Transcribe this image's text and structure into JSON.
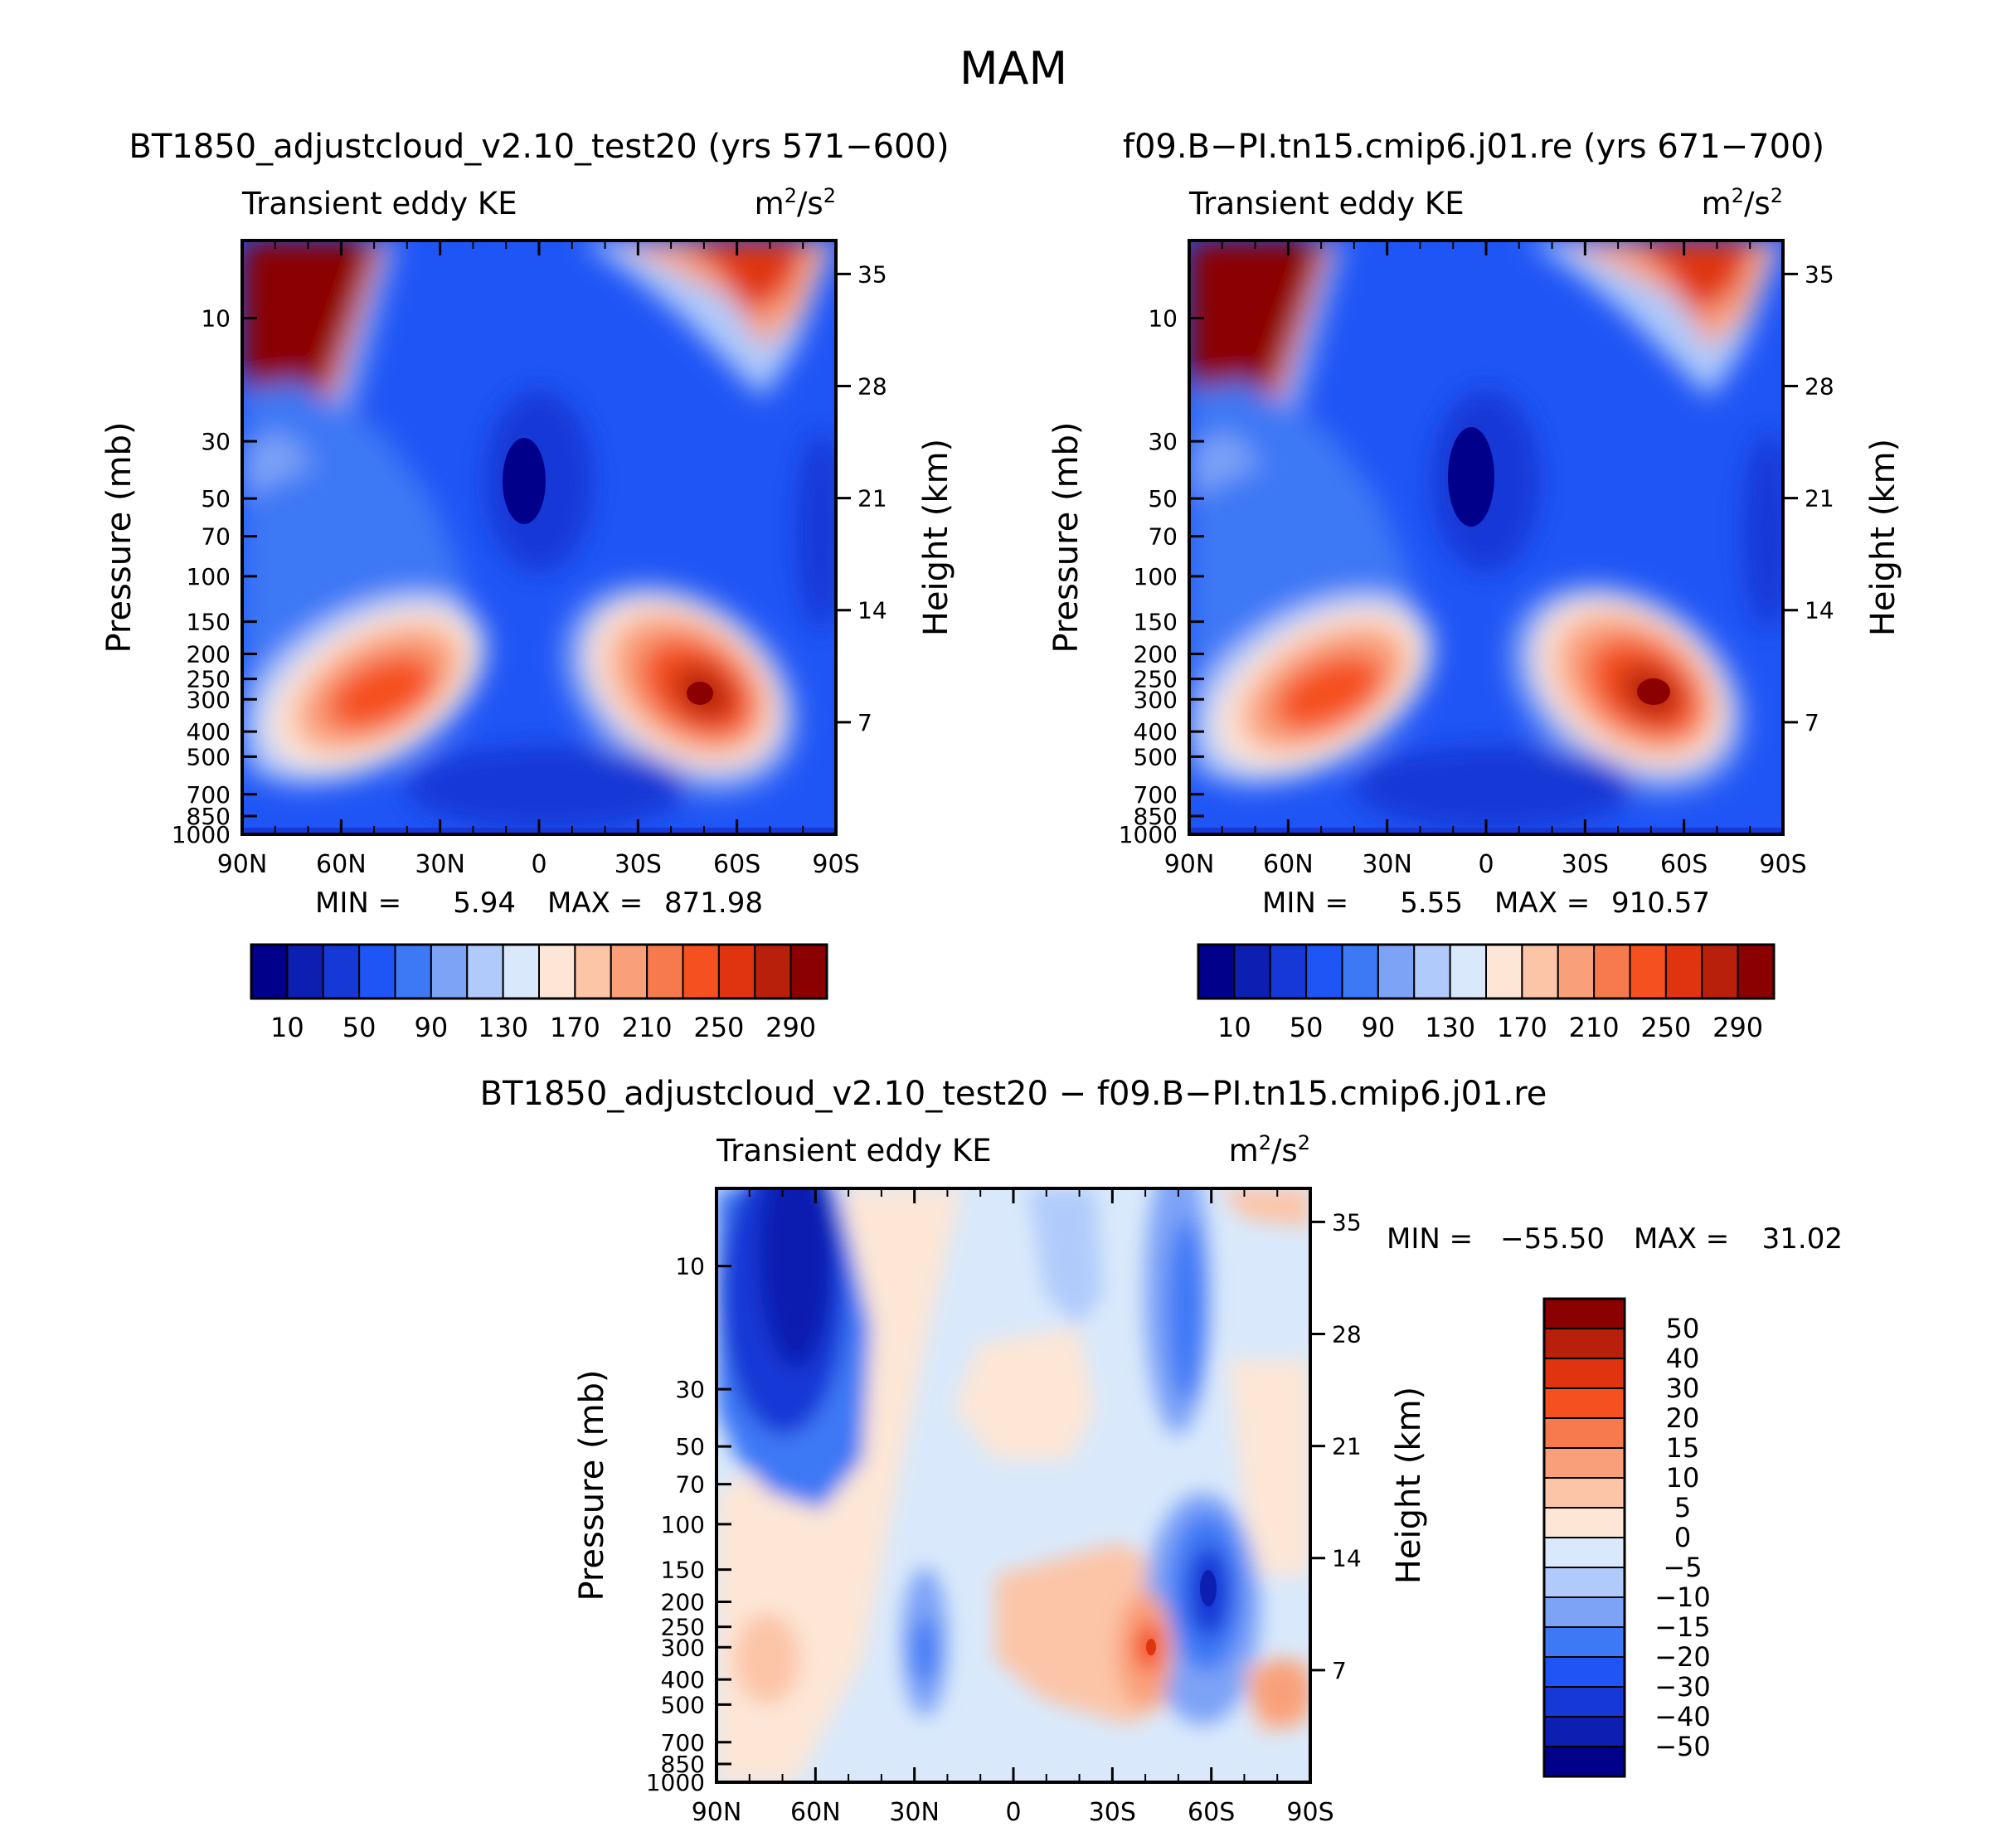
{
  "figure": {
    "season": "MAM"
  },
  "chart_data": [
    {
      "type": "heatmap",
      "title": "BT1850_adjustcloud_v2.10_test20 (yrs 571−600)",
      "subtitle_left": "Transient eddy KE",
      "units": "m²/s²",
      "ylabel": "Pressure (mb)",
      "ylabel_right": "Height (km)",
      "xticks": [
        "90N",
        "60N",
        "30N",
        "0",
        "30S",
        "60S",
        "90S"
      ],
      "yticks": [
        "10",
        "30",
        "50",
        "70",
        "100",
        "150",
        "200",
        "250",
        "300",
        "400",
        "500",
        "700",
        "850",
        "1000"
      ],
      "yticks_right": [
        "35",
        "28",
        "21",
        "14",
        "7"
      ],
      "min_label": "MIN =",
      "min_value": "5.94",
      "max_label": "MAX =",
      "max_value": "871.98",
      "colorbar_labels": [
        "10",
        "50",
        "90",
        "130",
        "170",
        "210",
        "250",
        "290"
      ],
      "colors": [
        "#00008b",
        "#0c1fb0",
        "#1638d6",
        "#1f55f5",
        "#3d78f5",
        "#7da3f7",
        "#b0cbfb",
        "#d9e9fb",
        "#fde6d6",
        "#fcc5a8",
        "#f9a07a",
        "#f77a4f",
        "#f5501f",
        "#e03410",
        "#b8200c",
        "#8b0000"
      ]
    },
    {
      "type": "heatmap",
      "title": "f09.B−PI.tn15.cmip6.j01.re (yrs 671−700)",
      "subtitle_left": "Transient eddy KE",
      "units": "m²/s²",
      "ylabel": "Pressure (mb)",
      "ylabel_right": "Height (km)",
      "xticks": [
        "90N",
        "60N",
        "30N",
        "0",
        "30S",
        "60S",
        "90S"
      ],
      "yticks": [
        "10",
        "30",
        "50",
        "70",
        "100",
        "150",
        "200",
        "250",
        "300",
        "400",
        "500",
        "700",
        "850",
        "1000"
      ],
      "yticks_right": [
        "35",
        "28",
        "21",
        "14",
        "7"
      ],
      "min_label": "MIN =",
      "min_value": "5.55",
      "max_label": "MAX =",
      "max_value": "910.57",
      "colorbar_labels": [
        "10",
        "50",
        "90",
        "130",
        "170",
        "210",
        "250",
        "290"
      ],
      "colors": [
        "#00008b",
        "#0c1fb0",
        "#1638d6",
        "#1f55f5",
        "#3d78f5",
        "#7da3f7",
        "#b0cbfb",
        "#d9e9fb",
        "#fde6d6",
        "#fcc5a8",
        "#f9a07a",
        "#f77a4f",
        "#f5501f",
        "#e03410",
        "#b8200c",
        "#8b0000"
      ]
    },
    {
      "type": "heatmap",
      "title": "BT1850_adjustcloud_v2.10_test20 − f09.B−PI.tn15.cmip6.j01.re",
      "subtitle_left": "Transient eddy KE",
      "units": "m²/s²",
      "ylabel": "Pressure (mb)",
      "ylabel_right": "Height (km)",
      "xticks": [
        "90N",
        "60N",
        "30N",
        "0",
        "30S",
        "60S",
        "90S"
      ],
      "yticks": [
        "10",
        "30",
        "50",
        "70",
        "100",
        "150",
        "200",
        "250",
        "300",
        "400",
        "500",
        "700",
        "850",
        "1000"
      ],
      "yticks_right": [
        "35",
        "28",
        "21",
        "14",
        "7"
      ],
      "min_label": "MIN =",
      "min_value": "−55.50",
      "max_label": "MAX =",
      "max_value": "31.02",
      "colorbar_labels": [
        "50",
        "40",
        "30",
        "20",
        "15",
        "10",
        "5",
        "0",
        "−5",
        "−10",
        "−15",
        "−20",
        "−30",
        "−40",
        "−50"
      ],
      "colors": [
        "#8b0000",
        "#b8200c",
        "#e03410",
        "#f5501f",
        "#f77a4f",
        "#f9a07a",
        "#fcc5a8",
        "#fde6d6",
        "#d9e9fb",
        "#b0cbfb",
        "#7da3f7",
        "#3d78f5",
        "#1f55f5",
        "#1638d6",
        "#0c1fb0",
        "#00008b"
      ]
    }
  ]
}
